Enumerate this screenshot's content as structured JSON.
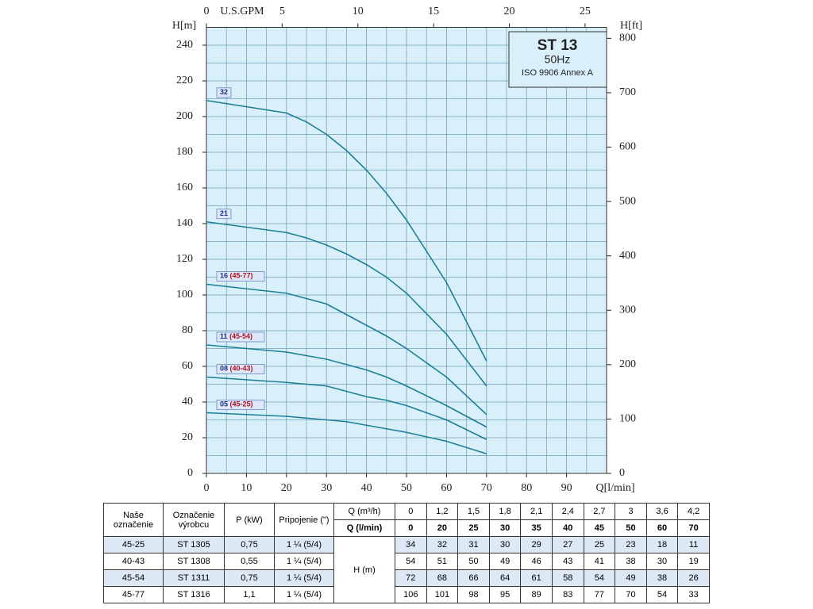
{
  "chart_data": {
    "type": "line",
    "x_label": "Q[l/min]",
    "y_label": "H[m]",
    "x2_label": "U.S.GPM",
    "y2_label": "H[ft]",
    "x": [
      0,
      20,
      25,
      30,
      35,
      40,
      45,
      50,
      60,
      70
    ],
    "xlim": [
      0,
      100
    ],
    "xticks": [
      0,
      10,
      20,
      30,
      40,
      50,
      60,
      70,
      80,
      90
    ],
    "ylim": [
      0,
      250
    ],
    "yticks": [
      0,
      20,
      40,
      60,
      80,
      100,
      120,
      140,
      160,
      180,
      200,
      220,
      240
    ],
    "x2lim": [
      0,
      26.42
    ],
    "x2ticks": [
      0,
      5,
      10,
      15,
      20,
      25
    ],
    "y2lim": [
      0,
      820.2
    ],
    "y2ticks": [
      0,
      100,
      200,
      300,
      400,
      500,
      600,
      700,
      800
    ],
    "grid": true,
    "info_box": {
      "title": "ST 13",
      "frequency": "50Hz",
      "standard": "ISO 9906 Annex A"
    },
    "series": [
      {
        "name": "32",
        "color": "#1b7f96",
        "values": [
          209,
          202,
          197,
          190,
          181,
          170,
          157,
          142,
          107,
          63
        ]
      },
      {
        "name": "21",
        "color": "#1b7f96",
        "values": [
          141,
          135,
          132,
          128,
          123,
          117,
          110,
          101,
          78,
          49
        ]
      },
      {
        "name": "16",
        "model": "(45-77)",
        "color": "#1b7f96",
        "values": [
          106,
          101,
          98,
          95,
          89,
          83,
          77,
          70,
          54,
          33
        ]
      },
      {
        "name": "11",
        "model": "(45-54)",
        "color": "#1b7f96",
        "values": [
          72,
          68,
          66,
          64,
          61,
          58,
          54,
          49,
          38,
          26
        ]
      },
      {
        "name": "08",
        "model": "(40-43)",
        "color": "#1b7f96",
        "values": [
          54,
          51,
          50,
          49,
          46,
          43,
          41,
          38,
          30,
          19
        ]
      },
      {
        "name": "05",
        "model": "(45-25)",
        "color": "#1b7f96",
        "values": [
          34,
          32,
          31,
          30,
          29,
          27,
          25,
          23,
          18,
          11
        ]
      }
    ]
  },
  "table": {
    "headers": [
      "Naše označenie",
      "Označenie výrobcu",
      "P (kW)",
      "Pripojenie (\")"
    ],
    "q_m3h_label": "Q (m³/h)",
    "q_lmin_label": "Q (l/min)",
    "h_label": "H (m)",
    "q_m3h": [
      "0",
      "1,2",
      "1,5",
      "1,8",
      "2,1",
      "2,4",
      "2,7",
      "3",
      "3,6",
      "4,2"
    ],
    "q_lmin": [
      0,
      20,
      25,
      30,
      35,
      40,
      45,
      50,
      60,
      70
    ],
    "rows": [
      {
        "code": "45-25",
        "model": "ST 1305",
        "power": "0,75",
        "connection": "1 ¼ (5/4)",
        "h": [
          34,
          32,
          31,
          30,
          29,
          27,
          25,
          23,
          18,
          11
        ]
      },
      {
        "code": "40-43",
        "model": "ST 1308",
        "power": "0,55",
        "connection": "1 ¼ (5/4)",
        "h": [
          54,
          51,
          50,
          49,
          46,
          43,
          41,
          38,
          30,
          19
        ]
      },
      {
        "code": "45-54",
        "model": "ST 1311",
        "power": "0,75",
        "connection": "1 ¼ (5/4)",
        "h": [
          72,
          68,
          66,
          64,
          61,
          58,
          54,
          49,
          38,
          26
        ]
      },
      {
        "code": "45-77",
        "model": "ST 1316",
        "power": "1,1",
        "connection": "1 ¼ (5/4)",
        "h": [
          106,
          101,
          98,
          95,
          89,
          83,
          77,
          70,
          54,
          33
        ]
      }
    ]
  }
}
